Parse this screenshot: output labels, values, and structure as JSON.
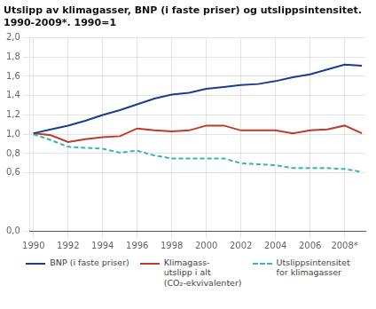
{
  "chart_data": {
    "type": "line",
    "title": "Utslipp av klimagasser, BNP (i faste priser) og utslippsintensitet.\n1990-2009*. 1990=1",
    "x": [
      1990,
      1991,
      1992,
      1993,
      1994,
      1995,
      1996,
      1997,
      1998,
      1999,
      2000,
      2001,
      2002,
      2003,
      2004,
      2005,
      2006,
      2007,
      2008,
      2009
    ],
    "series": [
      {
        "name": "BNP (i faste priser)",
        "color": "#1a3e8c",
        "line_style": "solid",
        "values": [
          1.01,
          1.05,
          1.09,
          1.14,
          1.2,
          1.25,
          1.31,
          1.37,
          1.41,
          1.43,
          1.47,
          1.49,
          1.51,
          1.52,
          1.55,
          1.59,
          1.62,
          1.67,
          1.72,
          1.71
        ]
      },
      {
        "name": "Klimagass-\nutslipp i alt\n(CO₂-ekvivalenter)",
        "color": "#c0392b",
        "line_style": "solid",
        "values": [
          1.01,
          0.99,
          0.92,
          0.95,
          0.97,
          0.98,
          1.06,
          1.04,
          1.03,
          1.04,
          1.09,
          1.09,
          1.04,
          1.04,
          1.04,
          1.01,
          1.04,
          1.05,
          1.09,
          1.01
        ]
      },
      {
        "name": "Utslippsintensitet\nfor klimagasser",
        "color": "#3ab5b0",
        "line_style": "dashed",
        "values": [
          1.0,
          0.94,
          0.87,
          0.86,
          0.85,
          0.81,
          0.83,
          0.78,
          0.75,
          0.75,
          0.75,
          0.75,
          0.7,
          0.69,
          0.68,
          0.65,
          0.65,
          0.65,
          0.64,
          0.61
        ]
      }
    ],
    "xlim": [
      1989.8,
      2009.2
    ],
    "xticks": [
      1990,
      1992,
      1994,
      1996,
      1998,
      2000,
      2002,
      2004,
      2006,
      {
        "value": 2008,
        "label": "2008*"
      }
    ],
    "ylim": [
      0.0,
      2.0
    ],
    "yticks": [
      {
        "value": 0.0,
        "label": "0,0"
      },
      {
        "value": 0.6,
        "label": "0,6"
      },
      {
        "value": 0.8,
        "label": "0,8"
      },
      {
        "value": 1.0,
        "label": "1,0"
      },
      {
        "value": 1.2,
        "label": "1,2"
      },
      {
        "value": 1.4,
        "label": "1,4"
      },
      {
        "value": 1.6,
        "label": "1,6"
      },
      {
        "value": 1.8,
        "label": "1,8"
      },
      {
        "value": 2.0,
        "label": "2,0"
      }
    ],
    "grid": true,
    "legend": "bottom"
  }
}
